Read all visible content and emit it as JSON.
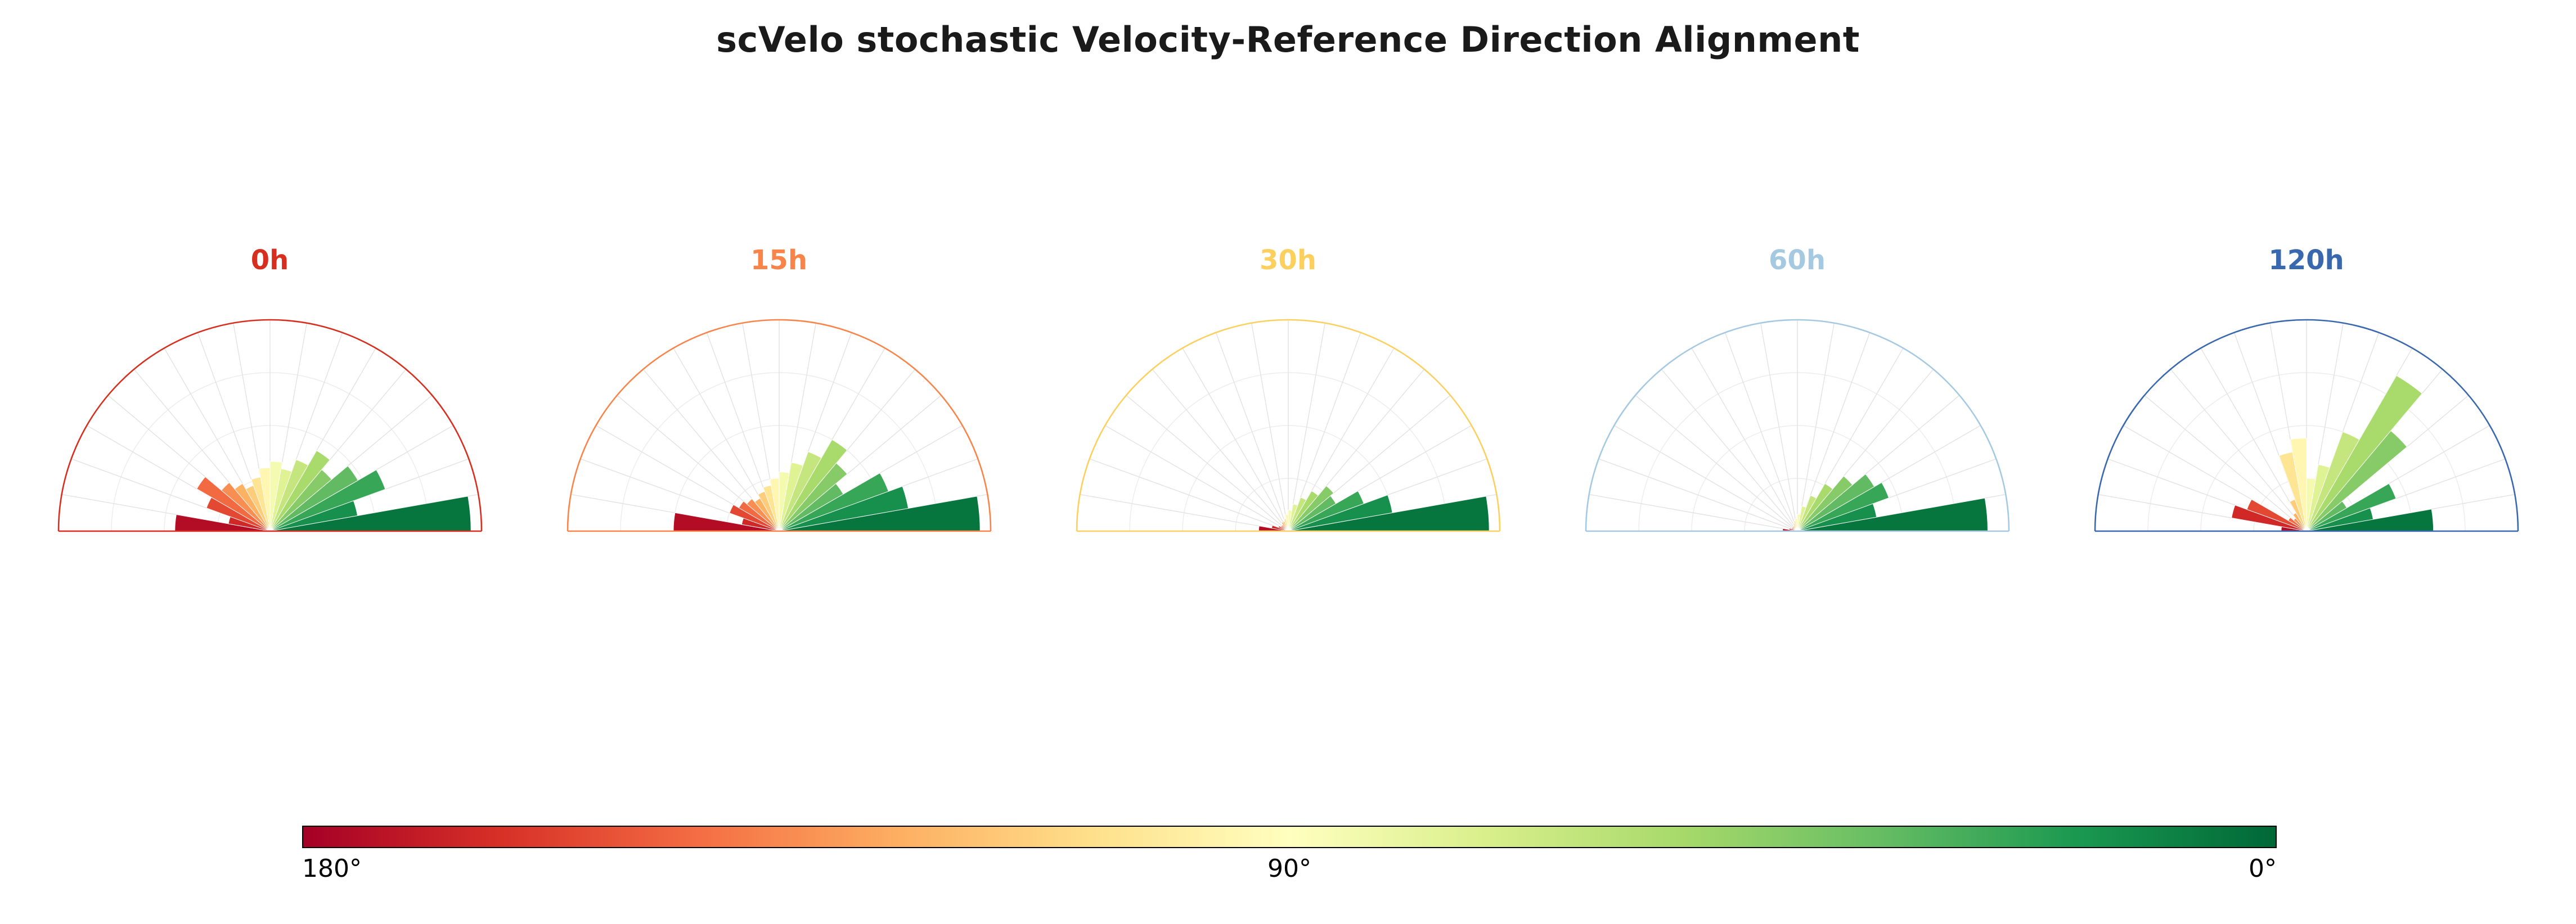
{
  "title": "scVelo stochastic Velocity-Reference Direction Alignment",
  "colorbar": {
    "label_left": "180°",
    "label_center": "90°",
    "label_right": "0°",
    "border_color": "#000000"
  },
  "chart_data": {
    "type": "bar",
    "subtype": "half-polar rose histograms (small multiples)",
    "title": "scVelo stochastic Velocity-Reference Direction Alignment",
    "angle_range_deg": [
      0,
      180
    ],
    "bin_width_deg": 10,
    "values_unit": "relative frequency (fraction of max radius)",
    "colormap_name": "RdYlGn mapped to angle (180°=red, 90°=pale yellow, 0°=green)",
    "colormap_stops": [
      "#a50026",
      "#d73027",
      "#f46d43",
      "#fdae61",
      "#fee08b",
      "#ffffbf",
      "#d9ef8b",
      "#a6d96a",
      "#66bd63",
      "#1a9850",
      "#006837"
    ],
    "grid": {
      "spoke_step_deg": 10,
      "spoke_color": "#e2e2e2",
      "ring_fractions": [
        0.25,
        0.5,
        0.75
      ],
      "ring_color": "#ececec"
    },
    "bin_centers_deg": [
      175,
      165,
      155,
      145,
      135,
      125,
      115,
      105,
      95,
      85,
      75,
      65,
      55,
      45,
      35,
      25,
      15,
      5
    ],
    "subplots": [
      {
        "label": "0h",
        "accent_color": "#d62f1f",
        "values": [
          0.45,
          0.2,
          0.32,
          0.4,
          0.3,
          0.26,
          0.23,
          0.26,
          0.3,
          0.33,
          0.3,
          0.36,
          0.44,
          0.38,
          0.48,
          0.58,
          0.42,
          0.95
        ]
      },
      {
        "label": "15h",
        "accent_color": "#f9844a",
        "values": [
          0.5,
          0.18,
          0.25,
          0.22,
          0.2,
          0.18,
          0.2,
          0.22,
          0.25,
          0.28,
          0.33,
          0.4,
          0.5,
          0.42,
          0.35,
          0.55,
          0.62,
          0.95
        ]
      },
      {
        "label": "30h",
        "accent_color": "#fbd05f",
        "values": [
          0.14,
          0.08,
          0.05,
          0.04,
          0.04,
          0.05,
          0.05,
          0.06,
          0.08,
          0.1,
          0.13,
          0.17,
          0.22,
          0.28,
          0.26,
          0.38,
          0.5,
          0.95
        ]
      },
      {
        "label": "60h",
        "accent_color": "#a6c9e2",
        "values": [
          0.07,
          0.04,
          0.03,
          0.03,
          0.03,
          0.03,
          0.04,
          0.05,
          0.06,
          0.08,
          0.12,
          0.18,
          0.26,
          0.34,
          0.42,
          0.46,
          0.38,
          0.9
        ]
      },
      {
        "label": "120h",
        "accent_color": "#3a68ae",
        "values": [
          0.12,
          0.36,
          0.3,
          0.1,
          0.08,
          0.1,
          0.16,
          0.38,
          0.44,
          0.25,
          0.32,
          0.5,
          0.85,
          0.62,
          0.22,
          0.45,
          0.32,
          0.6
        ]
      }
    ]
  }
}
